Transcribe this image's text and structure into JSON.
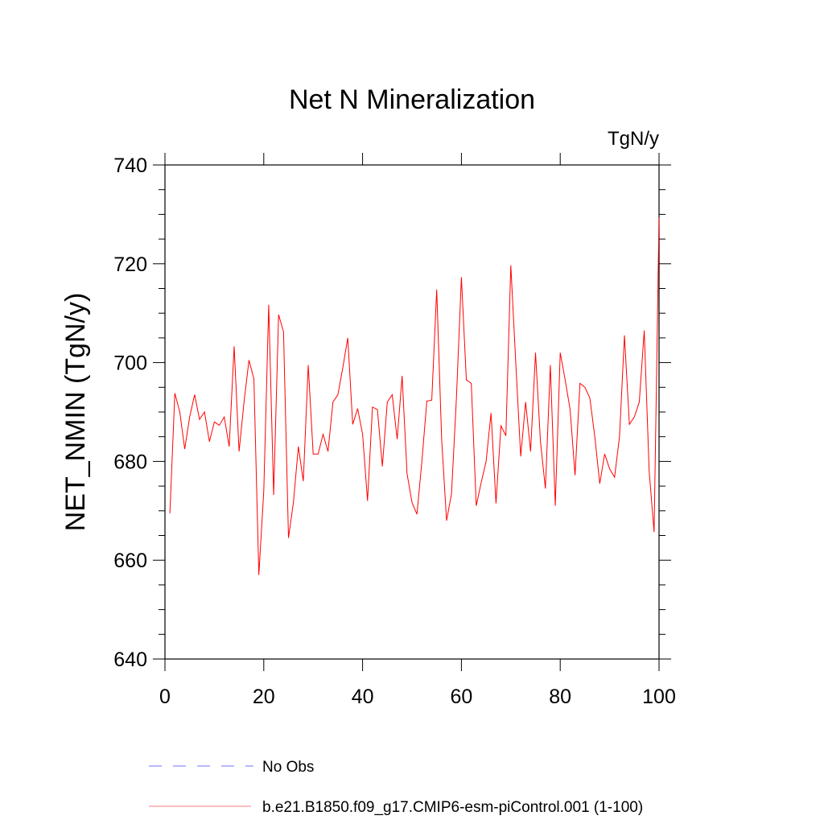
{
  "chart_data": {
    "type": "line",
    "title": "Net N Mineralization",
    "units": "TgN/y",
    "xlabel": "",
    "ylabel": "NET_NMIN  (TgN/y)",
    "xlim": [
      0,
      100
    ],
    "ylim": [
      640,
      740
    ],
    "xticks": [
      0,
      20,
      40,
      60,
      80,
      100
    ],
    "yticks": [
      640,
      660,
      680,
      700,
      720,
      740
    ],
    "grid": false,
    "legend_position": "bottom",
    "series": [
      {
        "name": "b.e21.B1850.f09_g17.CMIP6-esm-piControl.001 (1-100)",
        "color": "#ff0000",
        "legend_color": "#f08080",
        "x_start": 1,
        "values": [
          669.5,
          693.8,
          690,
          682.5,
          689,
          693.5,
          688.5,
          690,
          684,
          688,
          687.3,
          689,
          683,
          703.3,
          682,
          692,
          700.5,
          696.7,
          657,
          674,
          711.7,
          673.2,
          709.7,
          706.2,
          664.5,
          671.7,
          683,
          676,
          699.5,
          681.5,
          681.5,
          685.5,
          682,
          692,
          693.5,
          699,
          705,
          687.5,
          690.7,
          685.5,
          672,
          691,
          690.5,
          679,
          692,
          693.5,
          684.5,
          697.3,
          677.5,
          671.7,
          669.3,
          680,
          692.2,
          692.4,
          714.8,
          684.5,
          668,
          673.5,
          693,
          717.3,
          696.5,
          695.8,
          671,
          675.7,
          680,
          689.8,
          671.5,
          687.2,
          685.2,
          719.7,
          700,
          681,
          692,
          682,
          702,
          684,
          674.5,
          699.5,
          671,
          702,
          696.5,
          690.5,
          677.2,
          695.8,
          695,
          692.8,
          685,
          675.5,
          681.5,
          678.5,
          676.8,
          685,
          705.5,
          687.5,
          689,
          692,
          706.5,
          678,
          665.7,
          729.3
        ]
      }
    ],
    "legend": [
      {
        "label": "No Obs",
        "color": "#7070ff",
        "style": "dashed"
      },
      {
        "label": "b.e21.B1850.f09_g17.CMIP6-esm-piControl.001 (1-100)",
        "color": "#f08080",
        "style": "solid"
      }
    ]
  }
}
